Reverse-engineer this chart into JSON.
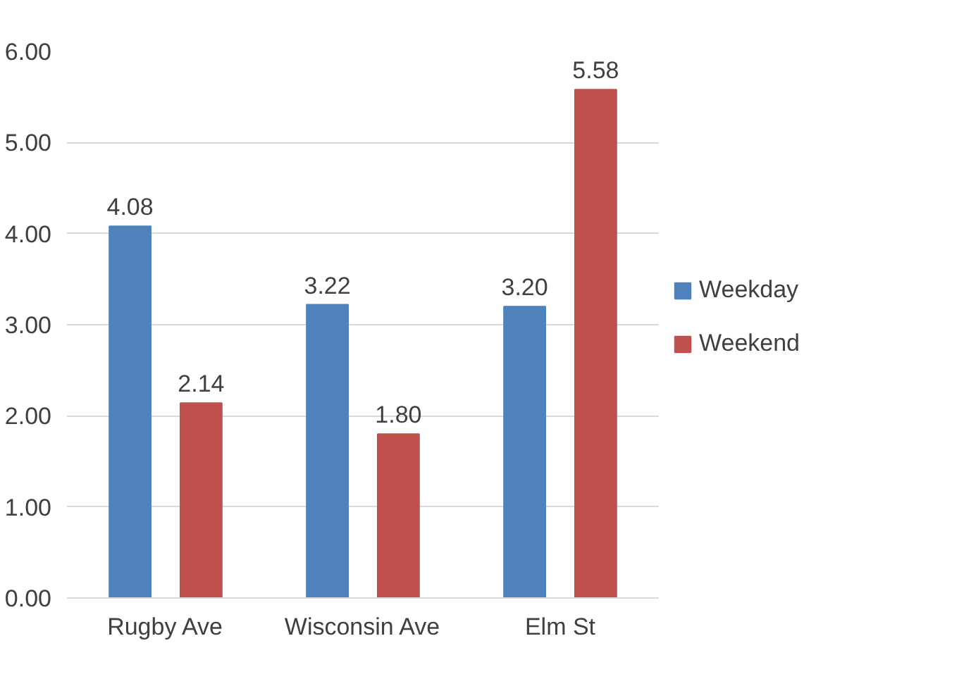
{
  "chart_data": {
    "type": "bar",
    "categories": [
      "Rugby Ave",
      "Wisconsin Ave",
      "Elm St"
    ],
    "series": [
      {
        "name": "Weekday",
        "color": "#4f81bd",
        "values": [
          4.08,
          3.22,
          3.2
        ],
        "value_labels": [
          "4.08",
          "3.22",
          "3.20"
        ]
      },
      {
        "name": "Weekend",
        "color": "#c0504d",
        "values": [
          2.14,
          1.8,
          5.58
        ],
        "value_labels": [
          "2.14",
          "1.80",
          "5.58"
        ]
      }
    ],
    "ylim": [
      0,
      6
    ],
    "yticks": [
      {
        "value": 0,
        "label": "0.00"
      },
      {
        "value": 1,
        "label": "1.00"
      },
      {
        "value": 2,
        "label": "2.00"
      },
      {
        "value": 3,
        "label": "3.00"
      },
      {
        "value": 4,
        "label": "4.00"
      },
      {
        "value": 5,
        "label": "5.00"
      },
      {
        "value": 6,
        "label": "6.00"
      }
    ],
    "grid": "y",
    "legend": "right"
  }
}
